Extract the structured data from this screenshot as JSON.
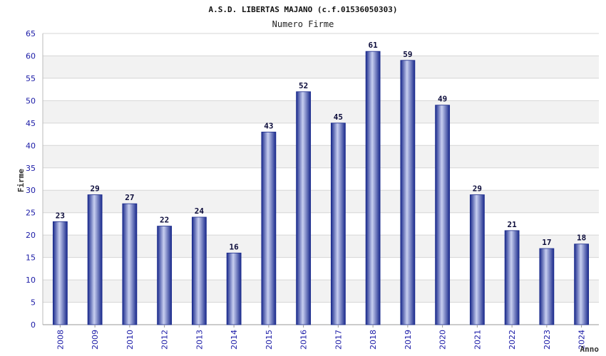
{
  "chart_data": {
    "type": "bar",
    "title": "A.S.D. LIBERTAS MAJANO (c.f.01536050303)",
    "subtitle": "Numero Firme",
    "xlabel": "Anno",
    "ylabel": "Firme",
    "categories": [
      "2008",
      "2009",
      "2010",
      "2012",
      "2013",
      "2014",
      "2015",
      "2016",
      "2017",
      "2018",
      "2019",
      "2020",
      "2021",
      "2022",
      "2023",
      "2024"
    ],
    "values": [
      23,
      29,
      27,
      22,
      24,
      16,
      43,
      52,
      45,
      61,
      59,
      49,
      29,
      21,
      17,
      18
    ],
    "ylim": [
      0,
      65
    ],
    "yticks": [
      0,
      5,
      10,
      15,
      20,
      25,
      30,
      35,
      40,
      45,
      50,
      55,
      60,
      65
    ],
    "grid": true,
    "bar_color": "#1a2a8c",
    "bar_highlight": "#c8cff0",
    "band_color": "#f2f2f2",
    "grid_color": "#d6d6d6",
    "tick_color": "#1a1aa6"
  }
}
